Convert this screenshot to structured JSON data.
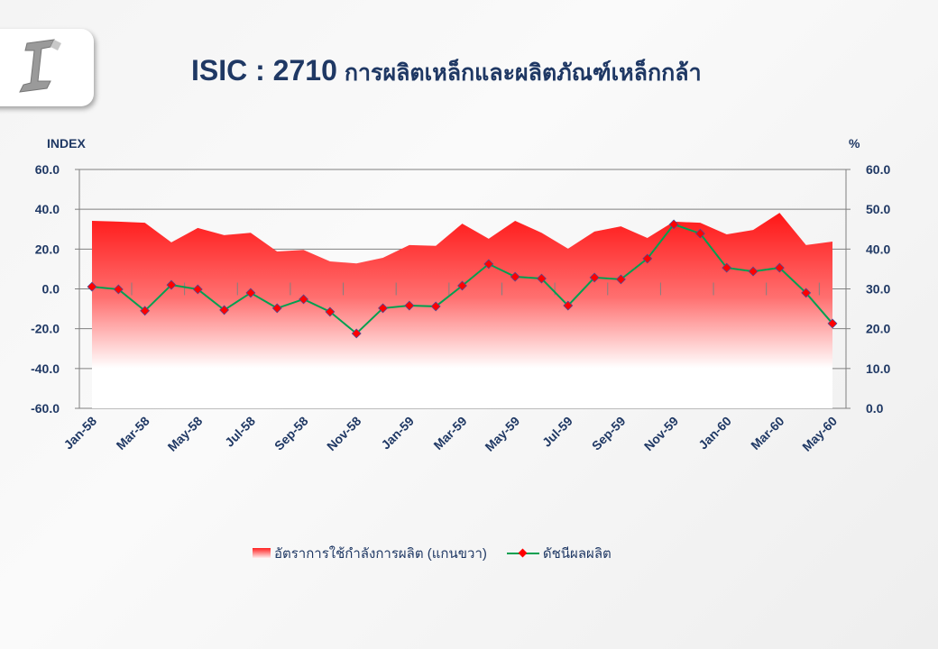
{
  "title": {
    "code": "ISIC : 2710",
    "text": "การผลิตเหล็กและผลิตภัณฑ์เหล็กกล้า"
  },
  "chart_data": {
    "type": "line+area",
    "categories": [
      "Jan-58",
      "Feb-58",
      "Mar-58",
      "Apr-58",
      "May-58",
      "Jun-58",
      "Jul-58",
      "Aug-58",
      "Sep-58",
      "Oct-58",
      "Nov-58",
      "Dec-58",
      "Jan-59",
      "Feb-59",
      "Mar-59",
      "Apr-59",
      "May-59",
      "Jun-59",
      "Jul-59",
      "Aug-59",
      "Sep-59",
      "Oct-59",
      "Nov-59",
      "Dec-59",
      "Jan-60",
      "Feb-60",
      "Mar-60",
      "Apr-60",
      "May-60"
    ],
    "tick_labels": [
      "Jan-58",
      "Mar-58",
      "May-58",
      "Jul-58",
      "Sep-58",
      "Nov-58",
      "Jan-59",
      "Mar-59",
      "May-59",
      "Jul-59",
      "Sep-59",
      "Nov-59",
      "Jan-60",
      "Mar-60",
      "May-60"
    ],
    "ylabel": "INDEX",
    "y2label": "%",
    "ylim": [
      -60,
      60
    ],
    "y2lim": [
      0,
      60
    ],
    "yticks": [
      "60.0",
      "40.0",
      "20.0",
      "0.0",
      "-20.0",
      "-40.0",
      "-60.0"
    ],
    "y2ticks": [
      "60.0",
      "50.0",
      "40.0",
      "30.0",
      "20.0",
      "10.0",
      "0.0"
    ],
    "series": [
      {
        "name": "อัตราการใช้กำลังการผลิต (แกนขวา)",
        "axis": "right",
        "type": "area",
        "color": "#ff1a1a",
        "values": [
          47.1,
          46.9,
          46.6,
          41.7,
          45.3,
          43.5,
          44.1,
          39.4,
          39.8,
          36.9,
          36.4,
          37.8,
          41.0,
          40.8,
          46.4,
          42.6,
          47.1,
          44.1,
          40.1,
          44.4,
          45.7,
          42.8,
          46.9,
          46.6,
          43.7,
          44.8,
          49.1,
          41.0,
          41.9
        ]
      },
      {
        "name": "ดัชนีผลผลิต",
        "axis": "left",
        "type": "line",
        "color": "#00a050",
        "marker": "#ff0000",
        "values": [
          1.1,
          -0.2,
          -11.0,
          2.0,
          -0.2,
          -10.6,
          -2.0,
          -9.7,
          -5.2,
          -11.5,
          -22.4,
          -9.7,
          -8.4,
          -8.8,
          1.6,
          12.5,
          6.1,
          5.2,
          -8.4,
          5.7,
          4.8,
          15.2,
          32.4,
          27.8,
          10.6,
          8.8,
          10.6,
          -2.0,
          -17.4
        ]
      }
    ],
    "legend": "bottom",
    "grid": true
  }
}
